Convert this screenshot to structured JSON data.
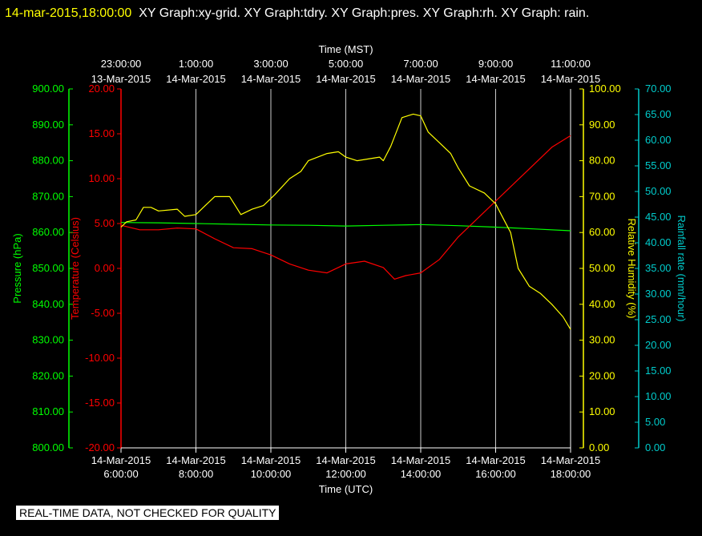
{
  "header": {
    "date_label": "14-mar-2015,18:00:00",
    "graphs_label": "XY Graph:xy-grid.  XY Graph:tdry.  XY Graph:pres.  XY Graph:rh.  XY Graph: rain."
  },
  "footer": {
    "note": "REAL-TIME DATA, NOT CHECKED FOR QUALITY"
  },
  "colors": {
    "background": "#000000",
    "grid": "#ffffff",
    "pressure": "#00ff00",
    "temperature": "#ff0000",
    "humidity": "#ffff00",
    "rainfall": "#00cccc"
  },
  "chart_data": {
    "type": "line",
    "x_bottom": {
      "label": "Time (UTC)",
      "ticks": [
        {
          "date": "14-Mar-2015",
          "time": "6:00:00"
        },
        {
          "date": "14-Mar-2015",
          "time": "8:00:00"
        },
        {
          "date": "14-Mar-2015",
          "time": "10:00:00"
        },
        {
          "date": "14-Mar-2015",
          "time": "12:00:00"
        },
        {
          "date": "14-Mar-2015",
          "time": "14:00:00"
        },
        {
          "date": "14-Mar-2015",
          "time": "16:00:00"
        },
        {
          "date": "14-Mar-2015",
          "time": "18:00:00"
        }
      ]
    },
    "x_top": {
      "label": "Time (MST)",
      "ticks": [
        {
          "date": "13-Mar-2015",
          "time": "23:00:00"
        },
        {
          "date": "14-Mar-2015",
          "time": "1:00:00"
        },
        {
          "date": "14-Mar-2015",
          "time": "3:00:00"
        },
        {
          "date": "14-Mar-2015",
          "time": "5:00:00"
        },
        {
          "date": "14-Mar-2015",
          "time": "7:00:00"
        },
        {
          "date": "14-Mar-2015",
          "time": "9:00:00"
        },
        {
          "date": "14-Mar-2015",
          "time": "11:00:00"
        }
      ]
    },
    "xlim_hours_utc": [
      6,
      18
    ],
    "grid": true,
    "axes": {
      "pressure": {
        "label": "Pressure (hPa)",
        "ylim": [
          800,
          900
        ],
        "ticks": [
          "800.00",
          "810.00",
          "820.00",
          "830.00",
          "840.00",
          "850.00",
          "860.00",
          "870.00",
          "880.00",
          "890.00",
          "900.00"
        ]
      },
      "temperature": {
        "label": "Temperature (Celsius)",
        "ylim": [
          -20,
          20
        ],
        "ticks": [
          "-20.00",
          "-15.00",
          "-10.00",
          "-5.00",
          "0.00",
          "5.00",
          "10.00",
          "15.00",
          "20.00"
        ]
      },
      "humidity": {
        "label": "Relative Humidity (%)",
        "ylim": [
          0,
          100
        ],
        "ticks": [
          "0.00",
          "10.00",
          "20.00",
          "30.00",
          "40.00",
          "50.00",
          "60.00",
          "70.00",
          "80.00",
          "90.00",
          "100.00"
        ]
      },
      "rainfall": {
        "label": "Rainfall rate (mm/hour)",
        "ylim": [
          0,
          70
        ],
        "ticks": [
          "0.00",
          "5.00",
          "10.00",
          "15.00",
          "20.00",
          "25.00",
          "30.00",
          "35.00",
          "40.00",
          "45.00",
          "50.00",
          "55.00",
          "60.00",
          "65.00",
          "70.00"
        ]
      }
    },
    "series": [
      {
        "axis": "pressure",
        "color": "#00ff00",
        "x": [
          6.0,
          7.0,
          8.0,
          9.0,
          10.0,
          11.0,
          12.0,
          13.0,
          14.0,
          15.0,
          16.0,
          17.0,
          18.0
        ],
        "y": [
          862.8,
          862.7,
          862.5,
          862.3,
          862.1,
          862.0,
          861.8,
          862.0,
          862.2,
          861.9,
          861.5,
          861.0,
          860.5
        ]
      },
      {
        "axis": "temperature",
        "color": "#ff0000",
        "x": [
          6.0,
          6.5,
          7.0,
          7.5,
          8.0,
          8.5,
          9.0,
          9.5,
          10.0,
          10.5,
          11.0,
          11.5,
          12.0,
          12.5,
          13.0,
          13.3,
          13.6,
          14.0,
          14.5,
          15.0,
          15.5,
          16.0,
          16.5,
          17.0,
          17.5,
          18.0
        ],
        "y": [
          4.8,
          4.3,
          4.3,
          4.5,
          4.4,
          3.3,
          2.3,
          2.2,
          1.5,
          0.5,
          -0.2,
          -0.5,
          0.5,
          0.8,
          0.1,
          -1.2,
          -0.8,
          -0.5,
          1.0,
          3.5,
          5.5,
          7.5,
          9.5,
          11.5,
          13.5,
          14.8
        ]
      },
      {
        "axis": "humidity",
        "color": "#ffff00",
        "x": [
          6.0,
          6.15,
          6.4,
          6.6,
          6.8,
          7.0,
          7.5,
          7.7,
          8.0,
          8.2,
          8.5,
          8.9,
          9.2,
          9.5,
          9.8,
          10.1,
          10.5,
          10.8,
          11.0,
          11.5,
          11.8,
          12.0,
          12.3,
          12.6,
          12.9,
          13.0,
          13.2,
          13.5,
          13.8,
          14.0,
          14.2,
          14.5,
          14.8,
          15.0,
          15.3,
          15.7,
          16.0,
          16.2,
          16.4,
          16.6,
          16.9,
          17.2,
          17.5,
          17.8,
          18.0
        ],
        "y": [
          61.5,
          63.0,
          63.5,
          67.0,
          67.0,
          66.0,
          66.5,
          64.5,
          65.0,
          67.0,
          70.0,
          70.0,
          65.0,
          66.5,
          67.5,
          70.5,
          75.0,
          77.0,
          80.0,
          82.0,
          82.5,
          81.0,
          80.0,
          80.5,
          81.0,
          80.0,
          84.0,
          92.0,
          93.0,
          92.5,
          88.0,
          85.0,
          82.0,
          78.0,
          73.0,
          71.0,
          68.0,
          64.0,
          60.0,
          50.0,
          45.0,
          43.0,
          40.0,
          36.5,
          33.0
        ]
      }
    ]
  }
}
